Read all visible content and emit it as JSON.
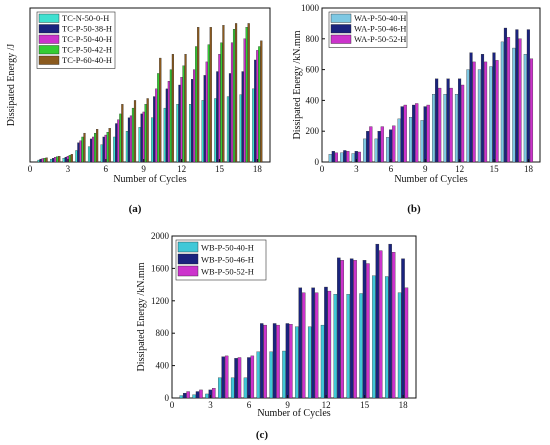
{
  "chart_data": [
    {
      "panel": "(a)",
      "type": "bar",
      "xlabel": "Number of Cycles",
      "ylabel": "Dissipated Energy /J",
      "x_ticks": [
        0,
        3,
        6,
        9,
        12,
        15,
        18
      ],
      "xlim": [
        0,
        19
      ],
      "ylim": [
        0,
        800
      ],
      "y_ticks": [],
      "legend_position": "top-left",
      "x": [
        1,
        2,
        3,
        4,
        5,
        6,
        7,
        8,
        9,
        10,
        11,
        12,
        13,
        14,
        15,
        16,
        17,
        18
      ],
      "series": [
        {
          "name": "TC-N-50-0-H",
          "color": "#40e0d0",
          "values": [
            10,
            15,
            20,
            60,
            80,
            90,
            130,
            160,
            180,
            230,
            280,
            300,
            300,
            320,
            330,
            340,
            350,
            380
          ]
        },
        {
          "name": "TC-P-50-38-H",
          "color": "#1a237e",
          "values": [
            15,
            20,
            25,
            100,
            120,
            130,
            200,
            230,
            250,
            340,
            380,
            400,
            430,
            450,
            470,
            460,
            470,
            530
          ]
        },
        {
          "name": "TC-P-50-40-H",
          "color": "#cc33cc",
          "values": [
            18,
            25,
            30,
            110,
            130,
            140,
            220,
            240,
            260,
            380,
            420,
            440,
            480,
            520,
            560,
            620,
            640,
            580
          ]
        },
        {
          "name": "TC-P-50-42-H",
          "color": "#33cc33",
          "values": [
            20,
            28,
            35,
            130,
            150,
            155,
            250,
            280,
            300,
            460,
            480,
            500,
            600,
            610,
            620,
            690,
            700,
            600
          ]
        },
        {
          "name": "TC-P-60-40-H",
          "color": "#8b5a1e",
          "values": [
            22,
            30,
            40,
            150,
            170,
            175,
            300,
            320,
            330,
            540,
            560,
            560,
            700,
            700,
            710,
            720,
            720,
            630
          ]
        }
      ]
    },
    {
      "panel": "(b)",
      "type": "bar",
      "xlabel": "Number of Cycles",
      "ylabel": "Dissipated Energy /kN.mm",
      "x_ticks": [
        0,
        3,
        6,
        9,
        12,
        15,
        18
      ],
      "xlim": [
        0,
        19
      ],
      "ylim": [
        0,
        1000
      ],
      "y_ticks": [
        0,
        200,
        400,
        600,
        800,
        1000
      ],
      "legend_position": "top-left",
      "x": [
        1,
        2,
        3,
        4,
        5,
        6,
        7,
        8,
        9,
        10,
        11,
        12,
        13,
        14,
        15,
        16,
        17,
        18
      ],
      "series": [
        {
          "name": "WA-P-50-40-H",
          "color": "#7ec8e3",
          "values": [
            50,
            60,
            55,
            150,
            150,
            160,
            280,
            290,
            270,
            440,
            440,
            440,
            600,
            600,
            620,
            780,
            740,
            700
          ]
        },
        {
          "name": "WA-P-50-46-H",
          "color": "#1a237e",
          "values": [
            70,
            75,
            70,
            200,
            200,
            210,
            360,
            370,
            360,
            540,
            540,
            540,
            710,
            700,
            710,
            870,
            860,
            860
          ]
        },
        {
          "name": "WA-P-50-52-H",
          "color": "#cc33cc",
          "values": [
            60,
            70,
            65,
            230,
            230,
            235,
            370,
            380,
            370,
            480,
            480,
            500,
            650,
            650,
            660,
            810,
            800,
            670
          ]
        }
      ]
    },
    {
      "panel": "(c)",
      "type": "bar",
      "xlabel": "Number of Cycles",
      "ylabel": "Dissipated Energy /kN.mm",
      "x_ticks": [
        0,
        3,
        6,
        9,
        12,
        15,
        18
      ],
      "xlim": [
        0,
        19
      ],
      "ylim": [
        0,
        2000
      ],
      "y_ticks": [
        0,
        400,
        800,
        1200,
        1600,
        2000
      ],
      "legend_position": "top-left",
      "x": [
        1,
        2,
        3,
        4,
        5,
        6,
        7,
        8,
        9,
        10,
        11,
        12,
        13,
        14,
        15,
        16,
        17,
        18
      ],
      "series": [
        {
          "name": "WB-P-50-40-H",
          "color": "#40c8d8",
          "values": [
            30,
            40,
            50,
            250,
            250,
            250,
            570,
            570,
            580,
            880,
            880,
            900,
            1280,
            1280,
            1290,
            1510,
            1500,
            1300
          ]
        },
        {
          "name": "WB-P-50-46-H",
          "color": "#1a237e",
          "values": [
            60,
            80,
            100,
            510,
            490,
            500,
            920,
            920,
            920,
            1360,
            1360,
            1370,
            1730,
            1720,
            1700,
            1900,
            1900,
            1720
          ]
        },
        {
          "name": "WB-P-50-52-H",
          "color": "#cc33cc",
          "values": [
            80,
            100,
            120,
            520,
            500,
            520,
            900,
            900,
            910,
            1300,
            1300,
            1320,
            1700,
            1700,
            1660,
            1820,
            1800,
            1360
          ]
        }
      ]
    }
  ]
}
